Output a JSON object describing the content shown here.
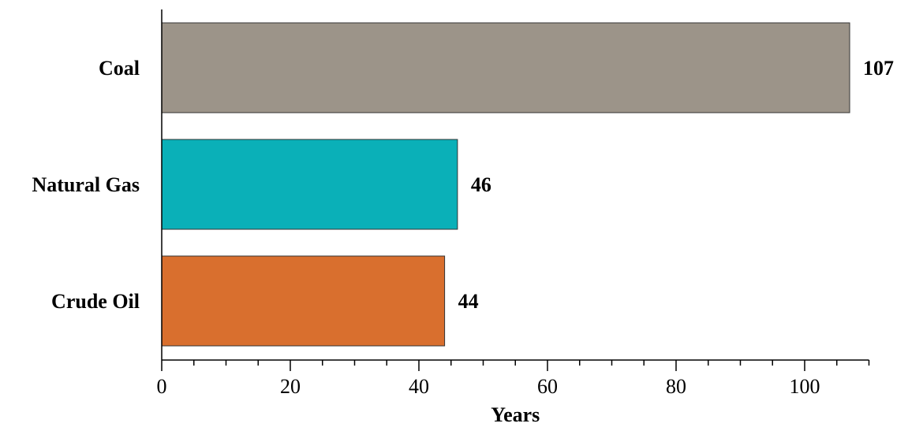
{
  "chart_data": {
    "type": "bar",
    "orientation": "horizontal",
    "categories": [
      "Coal",
      "Natural Gas",
      "Crude Oil"
    ],
    "values": [
      107,
      46,
      44
    ],
    "value_labels": [
      "107",
      "46",
      "44"
    ],
    "colors": [
      "#9c9489",
      "#0ab0b8",
      "#d96f2e"
    ],
    "title": "",
    "xlabel": "Years",
    "ylabel": "",
    "xlim": [
      0,
      110
    ],
    "xticks": [
      0,
      20,
      40,
      60,
      80,
      100
    ],
    "xtick_labels": [
      "0",
      "20",
      "40",
      "60",
      "80",
      "100"
    ],
    "minor_tick_step": 5,
    "grid": false,
    "legend": "none"
  }
}
